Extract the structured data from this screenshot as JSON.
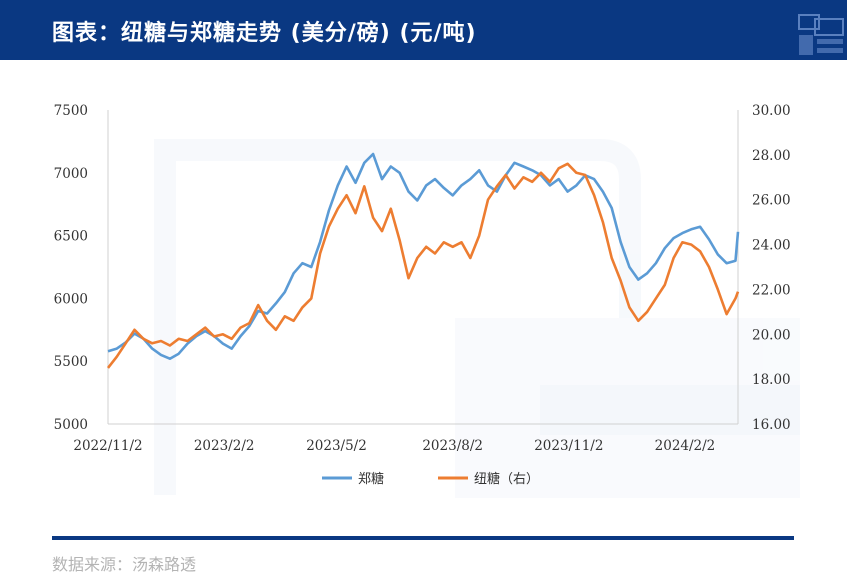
{
  "header": {
    "title": "图表：纽糖与郑糖走势 (美分/磅) (元/吨)",
    "background": "#0a3882"
  },
  "footer": {
    "source": "数据来源：汤森路透"
  },
  "chart_data": {
    "type": "line",
    "title": "",
    "xlabel": "",
    "ylabel": "",
    "x_ticks": [
      "2022/11/2",
      "2023/2/2",
      "2023/5/2",
      "2023/8/2",
      "2023/11/2",
      "2024/2/2"
    ],
    "x_range": [
      "2022/11/2",
      "2024/3/15"
    ],
    "y_left": {
      "range": [
        5000,
        7500
      ],
      "ticks": [
        "5000",
        "5500",
        "6000",
        "6500",
        "7000",
        "7500"
      ]
    },
    "y_right": {
      "range": [
        16,
        30
      ],
      "ticks": [
        "16.00",
        "18.00",
        "20.00",
        "22.00",
        "24.00",
        "26.00",
        "28.00",
        "30.00"
      ]
    },
    "grid": false,
    "legend_position": "bottom",
    "series": [
      {
        "name": "郑糖",
        "axis": "left",
        "color": "#5b9bd5",
        "points": [
          [
            "2022/11/2",
            5580
          ],
          [
            "2022/11/9",
            5600
          ],
          [
            "2022/11/16",
            5650
          ],
          [
            "2022/11/23",
            5720
          ],
          [
            "2022/11/30",
            5680
          ],
          [
            "2022/12/7",
            5600
          ],
          [
            "2022/12/14",
            5550
          ],
          [
            "2022/12/21",
            5520
          ],
          [
            "2022/12/28",
            5560
          ],
          [
            "2023/1/4",
            5640
          ],
          [
            "2023/1/11",
            5700
          ],
          [
            "2023/1/18",
            5740
          ],
          [
            "2023/1/25",
            5700
          ],
          [
            "2023/2/1",
            5640
          ],
          [
            "2023/2/8",
            5600
          ],
          [
            "2023/2/15",
            5700
          ],
          [
            "2023/2/22",
            5780
          ],
          [
            "2023/3/1",
            5900
          ],
          [
            "2023/3/8",
            5880
          ],
          [
            "2023/3/15",
            5960
          ],
          [
            "2023/3/22",
            6050
          ],
          [
            "2023/3/29",
            6200
          ],
          [
            "2023/4/5",
            6280
          ],
          [
            "2023/4/12",
            6250
          ],
          [
            "2023/4/19",
            6450
          ],
          [
            "2023/4/26",
            6700
          ],
          [
            "2023/5/3",
            6900
          ],
          [
            "2023/5/10",
            7050
          ],
          [
            "2023/5/17",
            6920
          ],
          [
            "2023/5/24",
            7080
          ],
          [
            "2023/5/31",
            7150
          ],
          [
            "2023/6/7",
            6950
          ],
          [
            "2023/6/14",
            7050
          ],
          [
            "2023/6/21",
            7000
          ],
          [
            "2023/6/28",
            6850
          ],
          [
            "2023/7/5",
            6780
          ],
          [
            "2023/7/12",
            6900
          ],
          [
            "2023/7/19",
            6950
          ],
          [
            "2023/7/26",
            6880
          ],
          [
            "2023/8/2",
            6820
          ],
          [
            "2023/8/9",
            6900
          ],
          [
            "2023/8/16",
            6950
          ],
          [
            "2023/8/23",
            7020
          ],
          [
            "2023/8/30",
            6900
          ],
          [
            "2023/9/6",
            6850
          ],
          [
            "2023/9/13",
            6980
          ],
          [
            "2023/9/20",
            7080
          ],
          [
            "2023/9/27",
            7050
          ],
          [
            "2023/10/4",
            7020
          ],
          [
            "2023/10/11",
            6980
          ],
          [
            "2023/10/18",
            6900
          ],
          [
            "2023/10/25",
            6950
          ],
          [
            "2023/11/1",
            6850
          ],
          [
            "2023/11/8",
            6900
          ],
          [
            "2023/11/15",
            6980
          ],
          [
            "2023/11/22",
            6950
          ],
          [
            "2023/11/29",
            6850
          ],
          [
            "2023/12/6",
            6720
          ],
          [
            "2023/12/13",
            6450
          ],
          [
            "2023/12/20",
            6250
          ],
          [
            "2023/12/27",
            6150
          ],
          [
            "2024/1/3",
            6200
          ],
          [
            "2024/1/10",
            6280
          ],
          [
            "2024/1/17",
            6400
          ],
          [
            "2024/1/24",
            6480
          ],
          [
            "2024/1/31",
            6520
          ],
          [
            "2024/2/7",
            6550
          ],
          [
            "2024/2/14",
            6570
          ],
          [
            "2024/2/21",
            6470
          ],
          [
            "2024/2/28",
            6350
          ],
          [
            "2024/3/6",
            6280
          ],
          [
            "2024/3/13",
            6300
          ],
          [
            "2024/3/15",
            6530
          ]
        ]
      },
      {
        "name": "纽糖（右）",
        "axis": "right",
        "color": "#ed7d31",
        "points": [
          [
            "2022/11/2",
            18.5
          ],
          [
            "2022/11/9",
            19.0
          ],
          [
            "2022/11/16",
            19.6
          ],
          [
            "2022/11/23",
            20.2
          ],
          [
            "2022/11/30",
            19.8
          ],
          [
            "2022/12/7",
            19.6
          ],
          [
            "2022/12/14",
            19.7
          ],
          [
            "2022/12/21",
            19.5
          ],
          [
            "2022/12/28",
            19.8
          ],
          [
            "2023/1/4",
            19.7
          ],
          [
            "2023/1/11",
            20.0
          ],
          [
            "2023/1/18",
            20.3
          ],
          [
            "2023/1/25",
            19.9
          ],
          [
            "2023/2/1",
            20.0
          ],
          [
            "2023/2/8",
            19.8
          ],
          [
            "2023/2/15",
            20.3
          ],
          [
            "2023/2/22",
            20.5
          ],
          [
            "2023/3/1",
            21.3
          ],
          [
            "2023/3/8",
            20.6
          ],
          [
            "2023/3/15",
            20.2
          ],
          [
            "2023/3/22",
            20.8
          ],
          [
            "2023/3/29",
            20.6
          ],
          [
            "2023/4/5",
            21.2
          ],
          [
            "2023/4/12",
            21.6
          ],
          [
            "2023/4/19",
            23.6
          ],
          [
            "2023/4/26",
            24.8
          ],
          [
            "2023/5/3",
            25.6
          ],
          [
            "2023/5/10",
            26.2
          ],
          [
            "2023/5/17",
            25.4
          ],
          [
            "2023/5/24",
            26.6
          ],
          [
            "2023/5/31",
            25.2
          ],
          [
            "2023/6/7",
            24.6
          ],
          [
            "2023/6/14",
            25.6
          ],
          [
            "2023/6/21",
            24.2
          ],
          [
            "2023/6/28",
            22.5
          ],
          [
            "2023/7/5",
            23.4
          ],
          [
            "2023/7/12",
            23.9
          ],
          [
            "2023/7/19",
            23.6
          ],
          [
            "2023/7/26",
            24.1
          ],
          [
            "2023/8/2",
            23.9
          ],
          [
            "2023/8/9",
            24.1
          ],
          [
            "2023/8/16",
            23.4
          ],
          [
            "2023/8/23",
            24.4
          ],
          [
            "2023/8/30",
            26.0
          ],
          [
            "2023/9/6",
            26.6
          ],
          [
            "2023/9/13",
            27.1
          ],
          [
            "2023/9/20",
            26.5
          ],
          [
            "2023/9/27",
            27.0
          ],
          [
            "2023/10/4",
            26.8
          ],
          [
            "2023/10/11",
            27.2
          ],
          [
            "2023/10/18",
            26.8
          ],
          [
            "2023/10/25",
            27.4
          ],
          [
            "2023/11/1",
            27.6
          ],
          [
            "2023/11/8",
            27.2
          ],
          [
            "2023/11/15",
            27.1
          ],
          [
            "2023/11/22",
            26.2
          ],
          [
            "2023/11/29",
            25.0
          ],
          [
            "2023/12/6",
            23.4
          ],
          [
            "2023/12/13",
            22.4
          ],
          [
            "2023/12/20",
            21.2
          ],
          [
            "2023/12/27",
            20.6
          ],
          [
            "2024/1/3",
            21.0
          ],
          [
            "2024/1/10",
            21.6
          ],
          [
            "2024/1/17",
            22.2
          ],
          [
            "2024/1/24",
            23.4
          ],
          [
            "2024/1/31",
            24.1
          ],
          [
            "2024/2/7",
            24.0
          ],
          [
            "2024/2/14",
            23.7
          ],
          [
            "2024/2/21",
            23.0
          ],
          [
            "2024/2/28",
            22.0
          ],
          [
            "2024/3/6",
            20.9
          ],
          [
            "2024/3/13",
            21.6
          ],
          [
            "2024/3/15",
            21.9
          ]
        ]
      }
    ]
  }
}
